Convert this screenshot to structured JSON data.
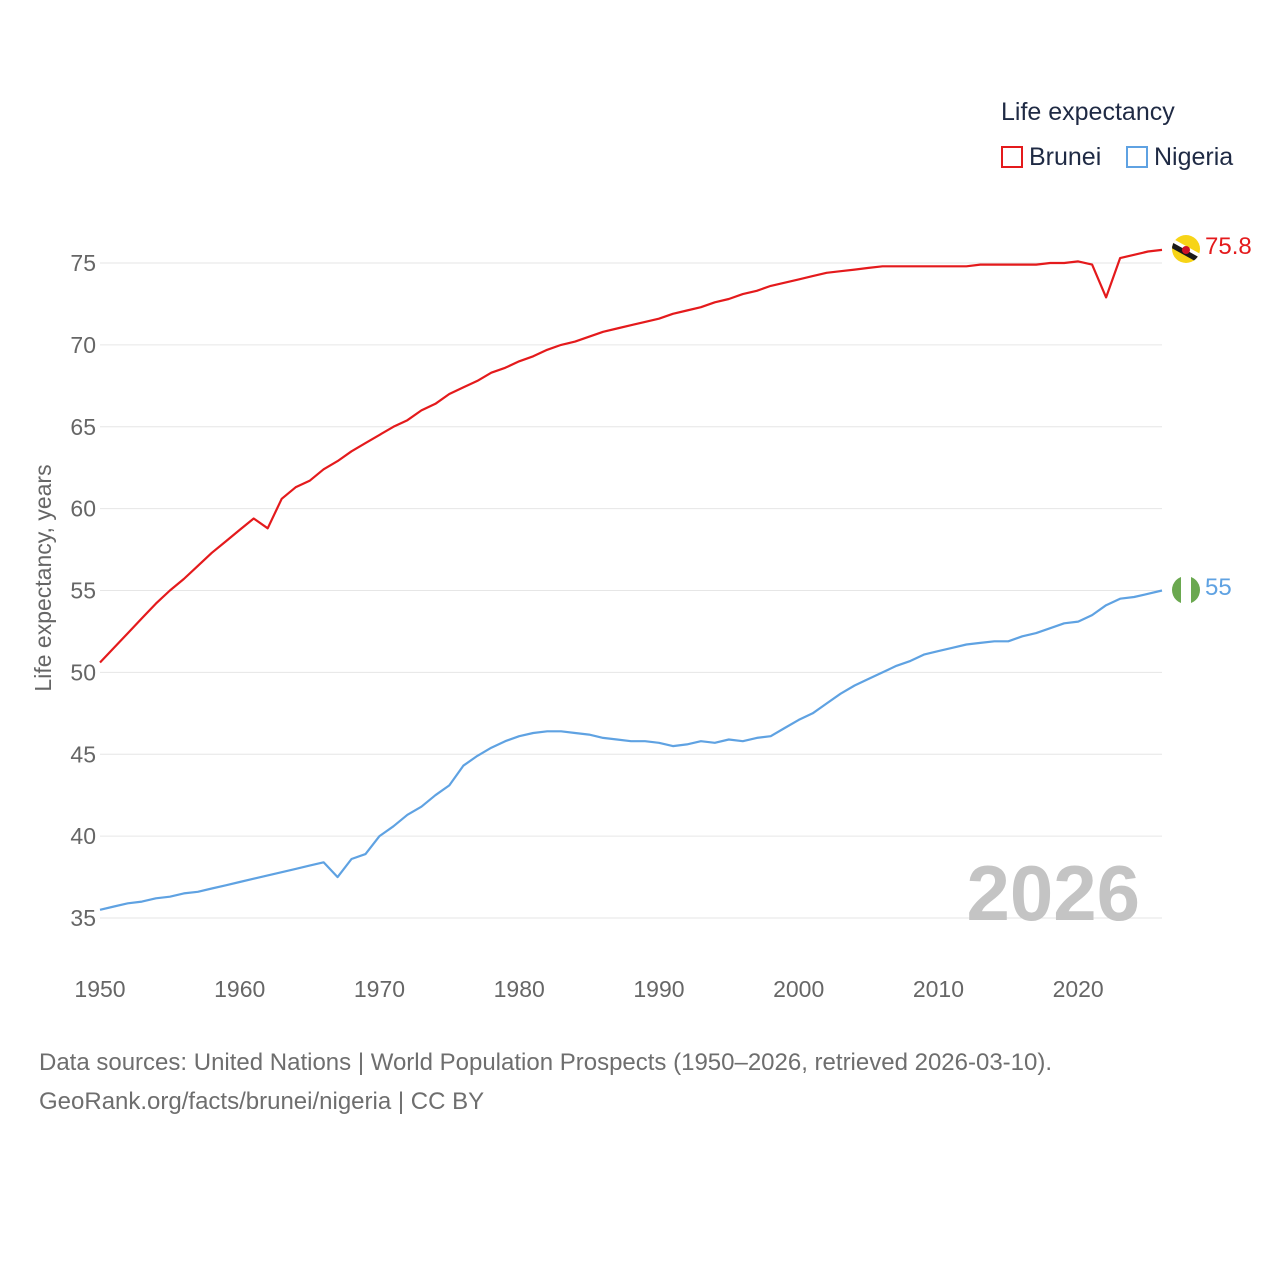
{
  "colors": {
    "brunei": "#e41a1c",
    "nigeria": "#5fa2e2",
    "grid": "#e6e6e6"
  },
  "legend": {
    "title": "Life expectancy",
    "items": [
      {
        "name": "Brunei",
        "color": "#e41a1c"
      },
      {
        "name": "Nigeria",
        "color": "#5fa2e2"
      }
    ]
  },
  "sources": {
    "line1": "Data sources: United Nations | World Population Prospects (1950–2026, retrieved 2026-03-10).",
    "line2": "GeoRank.org/facts/brunei/nigeria | CC BY"
  },
  "chart_data": {
    "type": "line",
    "title": "Life expectancy",
    "xlabel": "",
    "ylabel": "Life expectancy, years",
    "xlim": [
      1950,
      2026
    ],
    "ylim": [
      35,
      77
    ],
    "x_ticks": [
      1950,
      1960,
      1970,
      1980,
      1990,
      2000,
      2010,
      2020
    ],
    "y_ticks": [
      35,
      40,
      45,
      50,
      55,
      60,
      65,
      70,
      75
    ],
    "grid": true,
    "legend_position": "top-right",
    "year_label": "2026",
    "x": [
      1950,
      1951,
      1952,
      1953,
      1954,
      1955,
      1956,
      1957,
      1958,
      1959,
      1960,
      1961,
      1962,
      1963,
      1964,
      1965,
      1966,
      1967,
      1968,
      1969,
      1970,
      1971,
      1972,
      1973,
      1974,
      1975,
      1976,
      1977,
      1978,
      1979,
      1980,
      1981,
      1982,
      1983,
      1984,
      1985,
      1986,
      1987,
      1988,
      1989,
      1990,
      1991,
      1992,
      1993,
      1994,
      1995,
      1996,
      1997,
      1998,
      1999,
      2000,
      2001,
      2002,
      2003,
      2004,
      2005,
      2006,
      2007,
      2008,
      2009,
      2010,
      2011,
      2012,
      2013,
      2014,
      2015,
      2016,
      2017,
      2018,
      2019,
      2020,
      2021,
      2022,
      2023,
      2024,
      2025,
      2026
    ],
    "series": [
      {
        "name": "Brunei",
        "end_label": "75.8",
        "values": [
          50.6,
          51.5,
          52.4,
          53.3,
          54.2,
          55.0,
          55.7,
          56.5,
          57.3,
          58.0,
          58.7,
          59.4,
          58.8,
          60.6,
          61.3,
          61.7,
          62.4,
          62.9,
          63.5,
          64.0,
          64.5,
          65.0,
          65.4,
          66.0,
          66.4,
          67.0,
          67.4,
          67.8,
          68.3,
          68.6,
          69.0,
          69.3,
          69.7,
          70.0,
          70.2,
          70.5,
          70.8,
          71.0,
          71.2,
          71.4,
          71.6,
          71.9,
          72.1,
          72.3,
          72.6,
          72.8,
          73.1,
          73.3,
          73.6,
          73.8,
          74.0,
          74.2,
          74.4,
          74.5,
          74.6,
          74.7,
          74.8,
          74.8,
          74.8,
          74.8,
          74.8,
          74.8,
          74.8,
          74.9,
          74.9,
          74.9,
          74.9,
          74.9,
          75.0,
          75.0,
          75.1,
          74.9,
          72.9,
          75.3,
          75.5,
          75.7,
          75.8
        ]
      },
      {
        "name": "Nigeria",
        "end_label": "55",
        "values": [
          35.5,
          35.7,
          35.9,
          36.0,
          36.2,
          36.3,
          36.5,
          36.6,
          36.8,
          37.0,
          37.2,
          37.4,
          37.6,
          37.8,
          38.0,
          38.2,
          38.4,
          37.5,
          38.6,
          38.9,
          40.0,
          40.6,
          41.3,
          41.8,
          42.5,
          43.1,
          44.3,
          44.9,
          45.4,
          45.8,
          46.1,
          46.3,
          46.4,
          46.4,
          46.3,
          46.2,
          46.0,
          45.9,
          45.8,
          45.8,
          45.7,
          45.5,
          45.6,
          45.8,
          45.7,
          45.9,
          45.8,
          46.0,
          46.1,
          46.6,
          47.1,
          47.5,
          48.1,
          48.7,
          49.2,
          49.6,
          50.0,
          50.4,
          50.7,
          51.1,
          51.3,
          51.5,
          51.7,
          51.8,
          51.9,
          51.9,
          52.2,
          52.4,
          52.7,
          53.0,
          53.1,
          53.5,
          54.1,
          54.5,
          54.6,
          54.8,
          55.0
        ]
      }
    ]
  }
}
